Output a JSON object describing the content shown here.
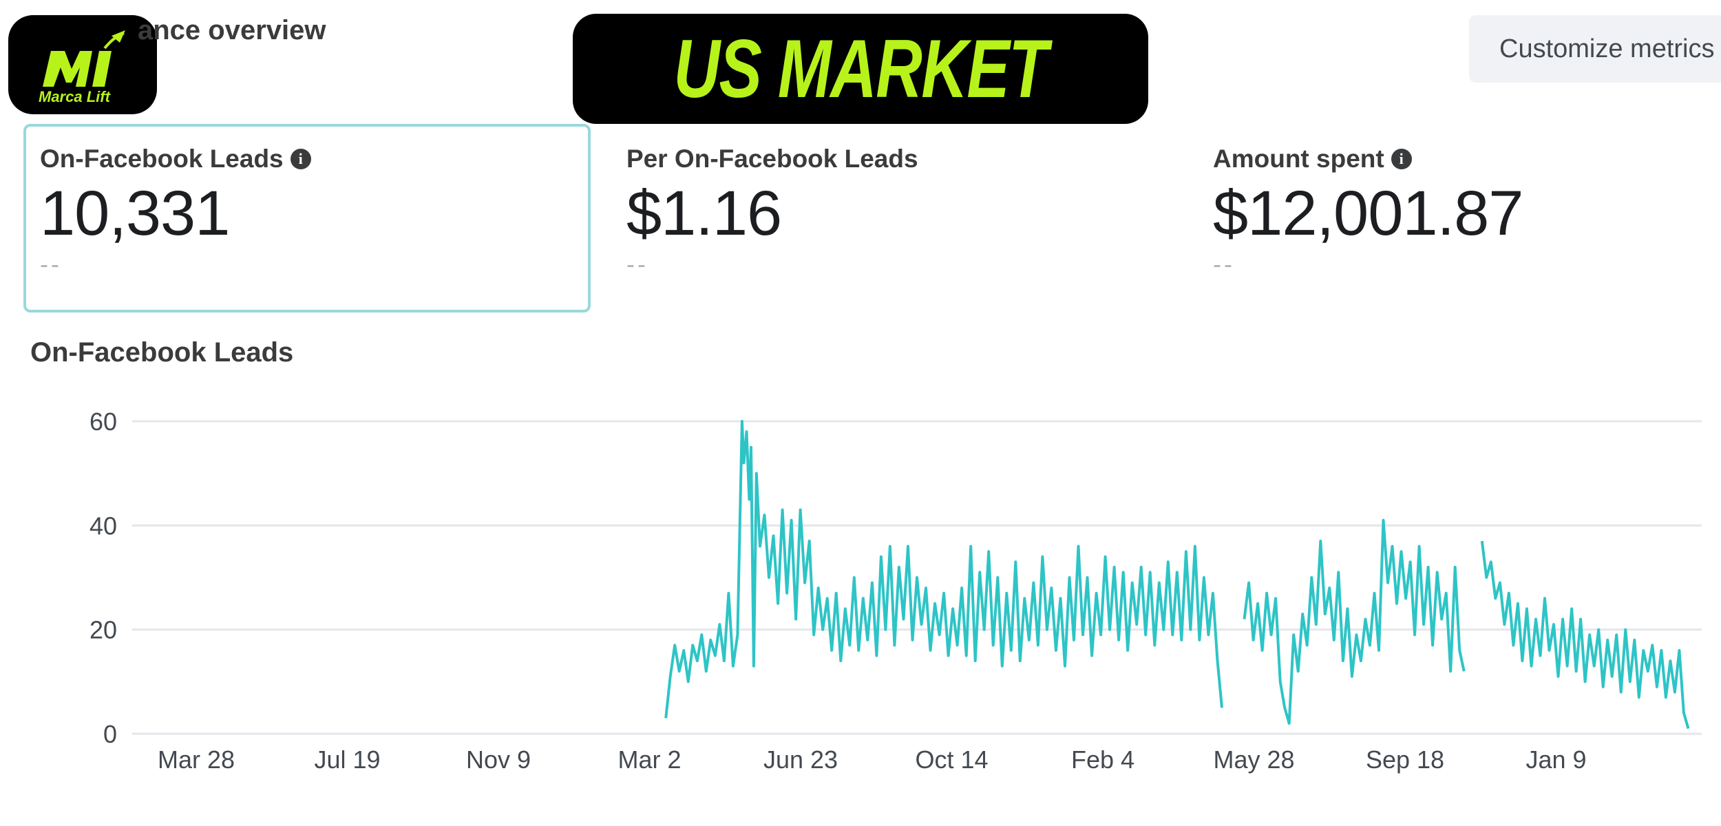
{
  "header": {
    "section_title": "ance overview",
    "banner_title": "US MARKET",
    "customize_label": "Customize metrics",
    "logo_text": "Marca Lift",
    "accent_color": "#b7f21b"
  },
  "metrics": [
    {
      "label": "On-Facebook Leads",
      "value": "10,331",
      "sub": "--",
      "info_icon": "info-icon"
    },
    {
      "label": "Per On-Facebook Leads",
      "value": "$1.16",
      "sub": "--"
    },
    {
      "label": "Amount spent",
      "value": "$12,001.87",
      "sub": "--",
      "info_icon": "info-icon"
    }
  ],
  "chart_title": "On-Facebook Leads",
  "chart_data": {
    "type": "line",
    "title": "On-Facebook Leads",
    "xlabel": "",
    "ylabel": "",
    "ylim": [
      0,
      60
    ],
    "yticks": [
      "0",
      "20",
      "40",
      "60"
    ],
    "xticks": [
      "Mar 28",
      "Jul 19",
      "Nov 9",
      "Mar 2",
      "Jun 23",
      "Oct 14",
      "Feb 4",
      "May 28",
      "Sep 18",
      "Jan 9"
    ],
    "grid": true,
    "line_color": "#2ec4c6",
    "series": [
      {
        "values": [
          [
            5.95,
            3
          ],
          [
            6.0,
            11
          ],
          [
            6.05,
            17
          ],
          [
            6.1,
            12
          ],
          [
            6.15,
            16
          ],
          [
            6.2,
            10
          ],
          [
            6.25,
            17
          ],
          [
            6.3,
            14
          ],
          [
            6.35,
            19
          ],
          [
            6.4,
            12
          ],
          [
            6.45,
            18
          ],
          [
            6.5,
            15
          ],
          [
            6.55,
            21
          ],
          [
            6.6,
            14
          ],
          [
            6.65,
            27
          ],
          [
            6.7,
            13
          ],
          [
            6.75,
            19
          ],
          [
            6.8,
            60
          ],
          [
            6.82,
            52
          ],
          [
            6.85,
            58
          ],
          [
            6.88,
            45
          ],
          [
            6.9,
            55
          ],
          [
            6.93,
            13
          ],
          [
            6.96,
            50
          ],
          [
            7.0,
            36
          ],
          [
            7.05,
            42
          ],
          [
            7.1,
            30
          ],
          [
            7.15,
            38
          ],
          [
            7.2,
            25
          ],
          [
            7.25,
            43
          ],
          [
            7.3,
            27
          ],
          [
            7.35,
            41
          ],
          [
            7.4,
            22
          ],
          [
            7.45,
            43
          ],
          [
            7.5,
            29
          ],
          [
            7.55,
            37
          ],
          [
            7.6,
            19
          ],
          [
            7.65,
            28
          ],
          [
            7.7,
            20
          ],
          [
            7.75,
            26
          ],
          [
            7.8,
            16
          ],
          [
            7.85,
            27
          ],
          [
            7.9,
            14
          ],
          [
            7.95,
            24
          ],
          [
            8.0,
            17
          ],
          [
            8.05,
            30
          ],
          [
            8.1,
            16
          ],
          [
            8.15,
            26
          ],
          [
            8.2,
            18
          ],
          [
            8.25,
            29
          ],
          [
            8.3,
            15
          ],
          [
            8.35,
            34
          ],
          [
            8.4,
            20
          ],
          [
            8.45,
            36
          ],
          [
            8.5,
            17
          ],
          [
            8.55,
            32
          ],
          [
            8.6,
            22
          ],
          [
            8.65,
            36
          ],
          [
            8.7,
            18
          ],
          [
            8.75,
            30
          ],
          [
            8.8,
            21
          ],
          [
            8.85,
            28
          ],
          [
            8.9,
            16
          ],
          [
            8.95,
            25
          ],
          [
            9.0,
            19
          ],
          [
            9.05,
            27
          ],
          [
            9.1,
            15
          ],
          [
            9.15,
            24
          ],
          [
            9.2,
            17
          ],
          [
            9.25,
            28
          ],
          [
            9.3,
            15
          ],
          [
            9.35,
            36
          ],
          [
            9.4,
            14
          ],
          [
            9.45,
            31
          ],
          [
            9.5,
            20
          ],
          [
            9.55,
            35
          ],
          [
            9.6,
            17
          ],
          [
            9.65,
            30
          ],
          [
            9.7,
            13
          ],
          [
            9.75,
            27
          ],
          [
            9.8,
            16
          ],
          [
            9.85,
            33
          ],
          [
            9.9,
            14
          ],
          [
            9.95,
            26
          ],
          [
            10.0,
            18
          ],
          [
            10.05,
            29
          ],
          [
            10.1,
            17
          ],
          [
            10.15,
            34
          ],
          [
            10.2,
            20
          ],
          [
            10.25,
            28
          ],
          [
            10.3,
            16
          ],
          [
            10.35,
            26
          ],
          [
            10.4,
            13
          ],
          [
            10.45,
            30
          ],
          [
            10.5,
            18
          ],
          [
            10.55,
            36
          ],
          [
            10.6,
            19
          ],
          [
            10.65,
            30
          ],
          [
            10.7,
            15
          ],
          [
            10.75,
            27
          ],
          [
            10.8,
            19
          ],
          [
            10.85,
            34
          ],
          [
            10.9,
            20
          ],
          [
            10.95,
            32
          ],
          [
            11.0,
            18
          ],
          [
            11.05,
            31
          ],
          [
            11.1,
            16
          ],
          [
            11.15,
            29
          ],
          [
            11.2,
            21
          ],
          [
            11.25,
            32
          ],
          [
            11.3,
            19
          ],
          [
            11.35,
            31
          ],
          [
            11.4,
            17
          ],
          [
            11.45,
            29
          ],
          [
            11.5,
            20
          ],
          [
            11.55,
            33
          ],
          [
            11.6,
            19
          ],
          [
            11.65,
            31
          ],
          [
            11.7,
            18
          ],
          [
            11.75,
            35
          ],
          [
            11.8,
            20
          ],
          [
            11.85,
            36
          ],
          [
            11.9,
            18
          ],
          [
            11.95,
            30
          ],
          [
            12.0,
            19
          ],
          [
            12.05,
            27
          ],
          [
            12.1,
            14
          ],
          [
            12.15,
            5
          ],
          [
            12.2,
            null
          ],
          [
            12.4,
            22
          ],
          [
            12.45,
            29
          ],
          [
            12.5,
            18
          ],
          [
            12.55,
            25
          ],
          [
            12.6,
            16
          ],
          [
            12.65,
            27
          ],
          [
            12.7,
            19
          ],
          [
            12.75,
            26
          ],
          [
            12.8,
            10
          ],
          [
            12.85,
            5
          ],
          [
            12.9,
            2
          ],
          [
            12.95,
            19
          ],
          [
            13.0,
            12
          ],
          [
            13.05,
            23
          ],
          [
            13.1,
            17
          ],
          [
            13.15,
            30
          ],
          [
            13.2,
            21
          ],
          [
            13.25,
            37
          ],
          [
            13.3,
            23
          ],
          [
            13.35,
            28
          ],
          [
            13.4,
            18
          ],
          [
            13.45,
            31
          ],
          [
            13.5,
            14
          ],
          [
            13.55,
            24
          ],
          [
            13.6,
            11
          ],
          [
            13.65,
            19
          ],
          [
            13.7,
            14
          ],
          [
            13.75,
            22
          ],
          [
            13.8,
            17
          ],
          [
            13.85,
            27
          ],
          [
            13.9,
            16
          ],
          [
            13.95,
            41
          ],
          [
            14.0,
            29
          ],
          [
            14.05,
            36
          ],
          [
            14.1,
            25
          ],
          [
            14.15,
            35
          ],
          [
            14.2,
            26
          ],
          [
            14.25,
            33
          ],
          [
            14.3,
            19
          ],
          [
            14.35,
            36
          ],
          [
            14.4,
            21
          ],
          [
            14.45,
            32
          ],
          [
            14.5,
            17
          ],
          [
            14.55,
            31
          ],
          [
            14.6,
            22
          ],
          [
            14.65,
            27
          ],
          [
            14.7,
            12
          ],
          [
            14.75,
            32
          ],
          [
            14.8,
            16
          ],
          [
            14.85,
            12
          ],
          [
            14.88,
            null
          ],
          [
            15.05,
            37
          ],
          [
            15.1,
            30
          ],
          [
            15.15,
            33
          ],
          [
            15.2,
            26
          ],
          [
            15.25,
            29
          ],
          [
            15.3,
            21
          ],
          [
            15.35,
            27
          ],
          [
            15.4,
            17
          ],
          [
            15.45,
            25
          ],
          [
            15.5,
            14
          ],
          [
            15.55,
            24
          ],
          [
            15.6,
            13
          ],
          [
            15.65,
            22
          ],
          [
            15.7,
            15
          ],
          [
            15.75,
            26
          ],
          [
            15.8,
            16
          ],
          [
            15.85,
            21
          ],
          [
            15.9,
            11
          ],
          [
            15.95,
            22
          ],
          [
            16.0,
            13
          ],
          [
            16.05,
            24
          ],
          [
            16.1,
            12
          ],
          [
            16.15,
            22
          ],
          [
            16.2,
            10
          ],
          [
            16.25,
            19
          ],
          [
            16.3,
            13
          ],
          [
            16.35,
            20
          ],
          [
            16.4,
            9
          ],
          [
            16.45,
            18
          ],
          [
            16.5,
            11
          ],
          [
            16.55,
            19
          ],
          [
            16.6,
            8
          ],
          [
            16.65,
            20
          ],
          [
            16.7,
            10
          ],
          [
            16.75,
            18
          ],
          [
            16.8,
            7
          ],
          [
            16.85,
            16
          ],
          [
            16.9,
            12
          ],
          [
            16.95,
            17
          ],
          [
            17.0,
            9
          ],
          [
            17.05,
            16
          ],
          [
            17.1,
            7
          ],
          [
            17.15,
            14
          ],
          [
            17.2,
            8
          ],
          [
            17.25,
            16
          ],
          [
            17.3,
            4
          ],
          [
            17.35,
            1
          ]
        ]
      }
    ]
  }
}
